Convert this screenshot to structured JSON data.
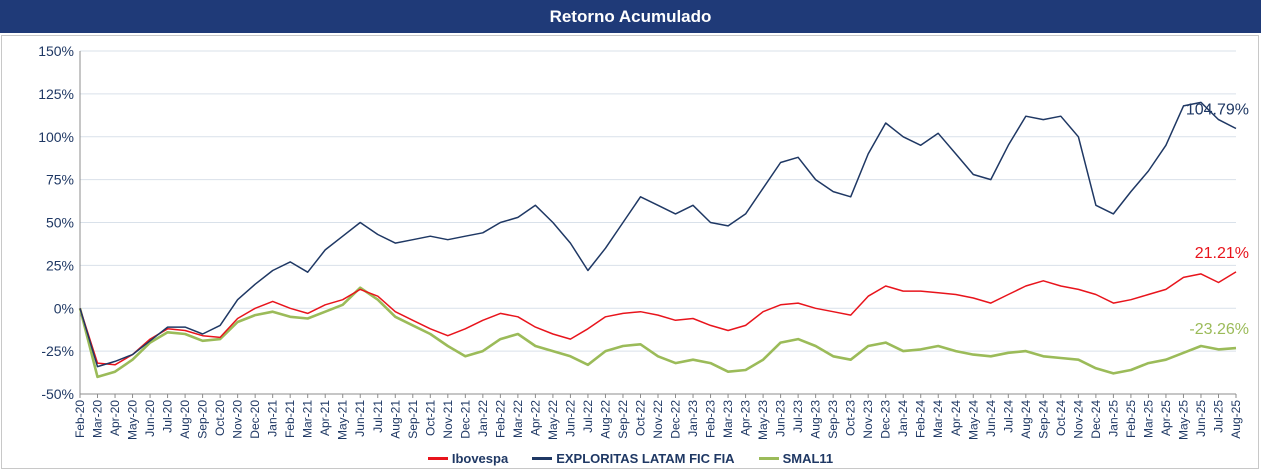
{
  "header": {
    "title": "Retorno Acumulado"
  },
  "chart_data": {
    "type": "line",
    "title": "Retorno Acumulado",
    "xlabel": "",
    "ylabel": "",
    "ylim": [
      -50,
      150
    ],
    "yticks": [
      "150%",
      "125%",
      "100%",
      "75%",
      "50%",
      "25%",
      "0%",
      "-25%",
      "-50%"
    ],
    "grid": "horizontal",
    "legend_position": "bottom",
    "categories": [
      "Feb-20",
      "Mar-20",
      "Apr-20",
      "May-20",
      "Jun-20",
      "Jul-20",
      "Aug-20",
      "Sep-20",
      "Oct-20",
      "Nov-20",
      "Dec-20",
      "Jan-21",
      "Feb-21",
      "Mar-21",
      "Apr-21",
      "May-21",
      "Jun-21",
      "Jul-21",
      "Aug-21",
      "Sep-21",
      "Oct-21",
      "Nov-21",
      "Dec-21",
      "Jan-22",
      "Feb-22",
      "Mar-22",
      "Apr-22",
      "May-22",
      "Jun-22",
      "Jul-22",
      "Aug-22",
      "Sep-22",
      "Oct-22",
      "Nov-22",
      "Dec-22",
      "Jan-23",
      "Feb-23",
      "Mar-23",
      "Apr-23",
      "May-23",
      "Jun-23",
      "Jul-23",
      "Aug-23",
      "Sep-23",
      "Oct-23",
      "Nov-23",
      "Dec-23",
      "Jan-24",
      "Feb-24",
      "Mar-24",
      "Apr-24",
      "May-24",
      "Jun-24",
      "Jul-24",
      "Aug-24",
      "Sep-24",
      "Oct-24",
      "Nov-24",
      "Dec-24",
      "Jan-25",
      "Feb-25",
      "Mar-25",
      "Apr-25",
      "May-25",
      "Jun-25",
      "Jul-25",
      "Aug-25"
    ],
    "series": [
      {
        "name": "Ibovespa",
        "color": "#e8141c",
        "end_label": "21.21%",
        "values": [
          0,
          -32,
          -33,
          -27,
          -18,
          -12,
          -13,
          -16,
          -17,
          -6,
          0,
          4,
          0,
          -3,
          2,
          5,
          11,
          7,
          -2,
          -7,
          -12,
          -16,
          -12,
          -7,
          -3,
          -5,
          -11,
          -15,
          -18,
          -12,
          -5,
          -3,
          -2,
          -4,
          -7,
          -6,
          -10,
          -13,
          -10,
          -2,
          2,
          3,
          0,
          -2,
          -4,
          7,
          13,
          10,
          10,
          9,
          8,
          6,
          3,
          8,
          13,
          16,
          13,
          11,
          8,
          3,
          5,
          8,
          11,
          18,
          20,
          15,
          21.21
        ]
      },
      {
        "name": "EXPLORITAS LATAM FIC FIA",
        "color": "#1f3864",
        "end_label": "104.79%",
        "values": [
          0,
          -34,
          -31,
          -27,
          -19,
          -11,
          -11,
          -15,
          -10,
          5,
          14,
          22,
          27,
          21,
          34,
          42,
          50,
          43,
          38,
          40,
          42,
          40,
          42,
          44,
          50,
          53,
          60,
          50,
          38,
          22,
          35,
          50,
          65,
          60,
          55,
          60,
          50,
          48,
          55,
          70,
          85,
          88,
          75,
          68,
          65,
          90,
          108,
          100,
          95,
          102,
          90,
          78,
          75,
          95,
          112,
          110,
          112,
          100,
          60,
          55,
          68,
          80,
          95,
          118,
          120,
          110,
          104.79
        ]
      },
      {
        "name": "SMAL11",
        "color": "#9bbb59",
        "end_label": "-23.26%",
        "values": [
          0,
          -40,
          -37,
          -30,
          -20,
          -14,
          -15,
          -19,
          -18,
          -8,
          -4,
          -2,
          -5,
          -6,
          -2,
          2,
          12,
          5,
          -5,
          -10,
          -15,
          -22,
          -28,
          -25,
          -18,
          -15,
          -22,
          -25,
          -28,
          -33,
          -25,
          -22,
          -21,
          -28,
          -32,
          -30,
          -32,
          -37,
          -36,
          -30,
          -20,
          -18,
          -22,
          -28,
          -30,
          -22,
          -20,
          -25,
          -24,
          -22,
          -25,
          -27,
          -28,
          -26,
          -25,
          -28,
          -29,
          -30,
          -35,
          -38,
          -36,
          -32,
          -30,
          -26,
          -22,
          -24,
          -23.26
        ]
      }
    ]
  }
}
